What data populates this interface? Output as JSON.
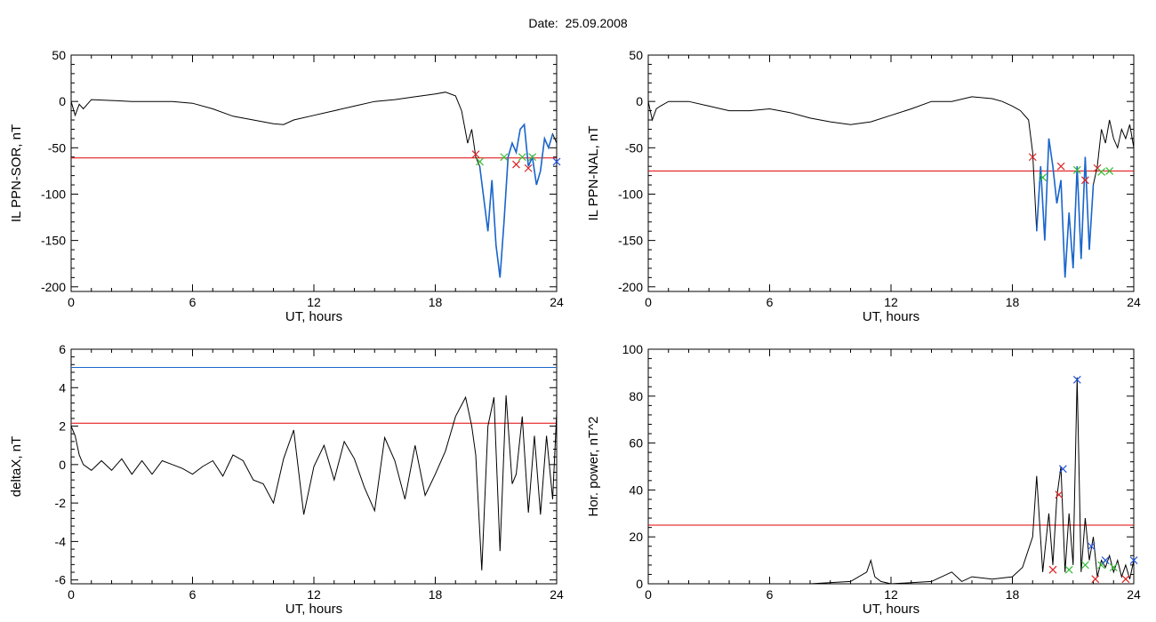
{
  "header": {
    "date_label": "Date:",
    "date_value": "25.09.2008"
  },
  "colors": {
    "threshold": "#e00000",
    "blue_line": "#1a66cc",
    "blue_marker": "#2255dd",
    "green_marker": "#33bb33",
    "red_marker": "#dd2222",
    "trace": "#000000"
  },
  "chart_data": [
    {
      "type": "line",
      "xlabel": "UT, hours",
      "ylabel": "IL PPN-SOR, nT",
      "xlim": [
        0,
        24
      ],
      "ylim": [
        -205,
        50
      ],
      "xticks": [
        0,
        6,
        12,
        18,
        24
      ],
      "yticks": [
        50,
        0,
        -50,
        -100,
        -150,
        -200
      ],
      "series": [
        {
          "x": [
            0,
            0.2,
            0.4,
            0.6,
            1,
            2,
            3,
            4,
            5,
            6,
            7,
            8,
            9,
            10,
            10.5,
            11,
            12,
            13,
            14,
            15,
            16,
            17,
            18,
            18.5,
            19,
            19.3,
            19.6,
            19.8,
            20,
            20.2,
            20.4,
            20.6,
            20.8,
            21,
            21.2,
            21.4,
            21.6,
            21.8,
            22,
            22.2,
            22.4,
            22.6,
            22.8,
            23,
            23.2,
            23.4,
            23.6,
            23.8,
            24
          ],
          "y": [
            0,
            -15,
            -3,
            -8,
            2,
            1,
            0,
            0,
            0,
            -2,
            -8,
            -16,
            -20,
            -24,
            -25,
            -20,
            -15,
            -10,
            -5,
            0,
            2,
            5,
            8,
            10,
            6,
            -10,
            -45,
            -30,
            -60,
            -70,
            -105,
            -140,
            -85,
            -155,
            -190,
            -130,
            -60,
            -45,
            -55,
            -30,
            -25,
            -70,
            -60,
            -90,
            -75,
            -40,
            -50,
            -35,
            -45
          ]
        }
      ],
      "blue_segment_x": [
        20.2,
        23.8
      ],
      "hlines": [
        {
          "y": -61,
          "color": "red"
        }
      ],
      "markers": [
        {
          "x": 20.0,
          "y": -57,
          "color": "red"
        },
        {
          "x": 20.2,
          "y": -65,
          "color": "green"
        },
        {
          "x": 21.4,
          "y": -60,
          "color": "green"
        },
        {
          "x": 22.0,
          "y": -68,
          "color": "red"
        },
        {
          "x": 22.3,
          "y": -60,
          "color": "green"
        },
        {
          "x": 22.6,
          "y": -72,
          "color": "red"
        },
        {
          "x": 22.8,
          "y": -60,
          "color": "green"
        },
        {
          "x": 24.0,
          "y": -65,
          "color": "blue"
        }
      ]
    },
    {
      "type": "line",
      "xlabel": "UT, hours",
      "ylabel": "IL PPN-NAL, nT",
      "xlim": [
        0,
        24
      ],
      "ylim": [
        -205,
        50
      ],
      "xticks": [
        0,
        6,
        12,
        18,
        24
      ],
      "yticks": [
        50,
        0,
        -50,
        -100,
        -150,
        -200
      ],
      "series": [
        {
          "x": [
            0,
            0.2,
            0.4,
            0.6,
            1,
            2,
            3,
            4,
            5,
            6,
            7,
            8,
            9,
            10,
            11,
            12,
            13,
            14,
            15,
            16,
            17,
            17.5,
            18,
            18.4,
            18.8,
            19,
            19.2,
            19.4,
            19.6,
            19.8,
            20,
            20.2,
            20.4,
            20.6,
            20.8,
            21,
            21.2,
            21.4,
            21.6,
            21.8,
            22,
            22.2,
            22.4,
            22.6,
            22.8,
            23,
            23.2,
            23.4,
            23.6,
            23.8,
            24
          ],
          "y": [
            0,
            -20,
            -8,
            -5,
            0,
            0,
            -5,
            -10,
            -10,
            -8,
            -12,
            -18,
            -22,
            -25,
            -22,
            -15,
            -8,
            0,
            0,
            5,
            3,
            0,
            -5,
            -10,
            -20,
            -55,
            -140,
            -70,
            -150,
            -40,
            -70,
            -110,
            -85,
            -190,
            -120,
            -180,
            -70,
            -170,
            -60,
            -160,
            -90,
            -70,
            -30,
            -45,
            -20,
            -40,
            -50,
            -30,
            -40,
            -25,
            -50
          ]
        }
      ],
      "blue_segment_x": [
        19.2,
        22.0
      ],
      "hlines": [
        {
          "y": -75,
          "color": "red"
        }
      ],
      "markers": [
        {
          "x": 19.0,
          "y": -60,
          "color": "red"
        },
        {
          "x": 19.5,
          "y": -82,
          "color": "green"
        },
        {
          "x": 20.4,
          "y": -70,
          "color": "red"
        },
        {
          "x": 21.2,
          "y": -74,
          "color": "green"
        },
        {
          "x": 21.6,
          "y": -85,
          "color": "red"
        },
        {
          "x": 22.2,
          "y": -72,
          "color": "red"
        },
        {
          "x": 22.4,
          "y": -76,
          "color": "green"
        },
        {
          "x": 22.8,
          "y": -75,
          "color": "green"
        }
      ]
    },
    {
      "type": "line",
      "xlabel": "UT, hours",
      "ylabel": "deltaX, nT",
      "xlim": [
        0,
        24
      ],
      "ylim": [
        -6.2,
        6
      ],
      "xticks": [
        0,
        6,
        12,
        18,
        24
      ],
      "yticks": [
        6,
        4,
        2,
        0,
        -2,
        -4,
        -6
      ],
      "series": [
        {
          "x": [
            0,
            0.2,
            0.4,
            0.6,
            1,
            1.5,
            2,
            2.5,
            3,
            3.5,
            4,
            4.5,
            5,
            5.5,
            6,
            6.5,
            7,
            7.5,
            8,
            8.5,
            9,
            9.5,
            10,
            10.5,
            11,
            11.5,
            12,
            12.5,
            13,
            13.5,
            14,
            14.5,
            15,
            15.5,
            16,
            16.5,
            17,
            17.5,
            18,
            18.5,
            19,
            19.5,
            19.8,
            20,
            20.3,
            20.6,
            20.9,
            21.2,
            21.5,
            21.8,
            22,
            22.3,
            22.6,
            22.9,
            23.2,
            23.5,
            23.8,
            24
          ],
          "y": [
            2,
            1.5,
            0.5,
            0,
            -0.3,
            0.2,
            -0.3,
            0.3,
            -0.5,
            0.2,
            -0.5,
            0.2,
            0,
            -0.2,
            -0.5,
            -0.1,
            0.2,
            -0.6,
            0.5,
            0.2,
            -0.8,
            -1.0,
            -2.0,
            0.3,
            1.8,
            -2.6,
            -0.1,
            1.0,
            -0.8,
            1.2,
            0.3,
            -1.2,
            -2.4,
            1.4,
            0.2,
            -1.8,
            1.0,
            -1.6,
            -0.5,
            0.7,
            2.5,
            3.5,
            2.0,
            0.5,
            -5.5,
            2.0,
            3.5,
            -4.5,
            3.6,
            -1.0,
            -0.5,
            2.5,
            -2.5,
            1.5,
            -2.6,
            1.5,
            -1.8,
            2.7
          ]
        }
      ],
      "hlines": [
        {
          "y": 5.05,
          "color": "blue"
        },
        {
          "y": 2.15,
          "color": "red"
        }
      ],
      "markers": []
    },
    {
      "type": "line",
      "xlabel": "UT, hours",
      "ylabel": "Hor. power, nT^2",
      "xlim": [
        0,
        24
      ],
      "ylim": [
        0,
        100
      ],
      "xticks": [
        0,
        6,
        12,
        18,
        24
      ],
      "yticks": [
        100,
        80,
        60,
        40,
        20,
        0
      ],
      "series": [
        {
          "x": [
            0,
            2,
            4,
            6,
            8,
            10,
            10.8,
            11,
            11.2,
            11.5,
            12,
            14,
            15,
            15.5,
            16,
            17,
            18,
            18.5,
            19,
            19.2,
            19.5,
            19.8,
            20,
            20.2,
            20.4,
            20.6,
            20.8,
            21,
            21.2,
            21.4,
            21.6,
            21.8,
            22,
            22.2,
            22.4,
            22.6,
            22.8,
            23,
            23.2,
            23.4,
            23.6,
            23.8,
            24
          ],
          "y": [
            0,
            0,
            0,
            0,
            0,
            1,
            5,
            10,
            3,
            1,
            0,
            1,
            5,
            1,
            3,
            2,
            3,
            7,
            20,
            46,
            5,
            30,
            8,
            37,
            50,
            5,
            30,
            8,
            88,
            5,
            28,
            10,
            20,
            3,
            10,
            7,
            12,
            5,
            10,
            3,
            8,
            2,
            10
          ]
        }
      ],
      "hlines": [
        {
          "y": 25,
          "color": "red"
        }
      ],
      "markers": [
        {
          "x": 20.0,
          "y": 6,
          "color": "red"
        },
        {
          "x": 20.3,
          "y": 38,
          "color": "red"
        },
        {
          "x": 20.5,
          "y": 49,
          "color": "blue"
        },
        {
          "x": 20.8,
          "y": 6,
          "color": "green"
        },
        {
          "x": 21.2,
          "y": 87,
          "color": "blue"
        },
        {
          "x": 21.6,
          "y": 8,
          "color": "green"
        },
        {
          "x": 21.9,
          "y": 16,
          "color": "blue"
        },
        {
          "x": 22.1,
          "y": 2,
          "color": "red"
        },
        {
          "x": 22.4,
          "y": 8,
          "color": "green"
        },
        {
          "x": 22.6,
          "y": 10,
          "color": "blue"
        },
        {
          "x": 23.0,
          "y": 7,
          "color": "green"
        },
        {
          "x": 23.6,
          "y": 2,
          "color": "red"
        },
        {
          "x": 24.0,
          "y": 10,
          "color": "blue"
        }
      ]
    }
  ]
}
